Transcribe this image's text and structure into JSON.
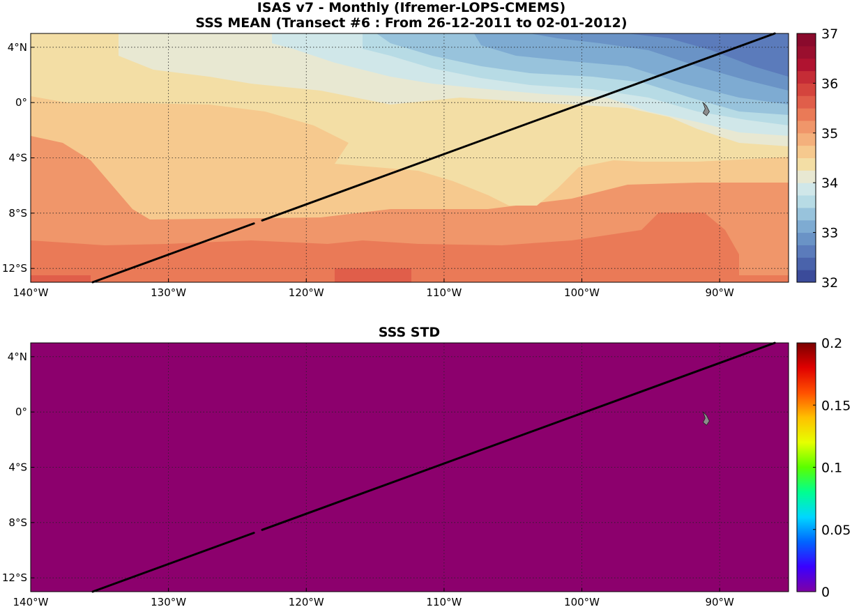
{
  "header": {
    "title": "ISAS v7 - Monthly (Ifremer-LOPS-CMEMS)",
    "subtitle": "SSS MEAN (Transect #6 : From 26-12-2011 to 02-01-2012)"
  },
  "panels": {
    "mean": {
      "title": "",
      "colorbar_ticks": [
        "32",
        "33",
        "34",
        "35",
        "36",
        "37"
      ],
      "colorbar_range": [
        32,
        37
      ]
    },
    "std": {
      "title": "SSS STD",
      "colorbar_ticks": [
        "0",
        "0.05",
        "0.1",
        "0.15",
        "0.2"
      ],
      "colorbar_range": [
        0,
        0.2
      ],
      "field_color": "#8c006d"
    }
  },
  "axes": {
    "lon_range": [
      -140,
      -85
    ],
    "lat_range": [
      -13,
      5
    ],
    "lon_ticks": [
      {
        "value": -140,
        "label": "140°W"
      },
      {
        "value": -130,
        "label": "130°W"
      },
      {
        "value": -120,
        "label": "120°W"
      },
      {
        "value": -110,
        "label": "110°W"
      },
      {
        "value": -100,
        "label": "100°W"
      },
      {
        "value": -90,
        "label": "90°W"
      }
    ],
    "lat_ticks": [
      {
        "value": 4,
        "label": "4°N"
      },
      {
        "value": 0,
        "label": "0°"
      },
      {
        "value": -4,
        "label": "4°S"
      },
      {
        "value": -8,
        "label": "8°S"
      },
      {
        "value": -12,
        "label": "12°S"
      }
    ]
  },
  "transect": {
    "start": {
      "lon": -135.5,
      "lat": -13
    },
    "end": {
      "lon": -86,
      "lat": 5
    },
    "gap_lon": [
      -123.8,
      -123.2
    ]
  },
  "island": {
    "name": "Galapagos",
    "lon": -91,
    "lat": -0.5,
    "color": "#8c8c8c"
  },
  "colors": {
    "mean_colormap": [
      "#3b4b9a",
      "#4a63ab",
      "#5b7bbb",
      "#6a93c6",
      "#7eabd2",
      "#98c3dc",
      "#b7dbe5",
      "#d0e7e9",
      "#e8e8d2",
      "#f3dea5",
      "#f6c98e",
      "#f4b07c",
      "#f0966a",
      "#ea7a57",
      "#e05e4a",
      "#d4443d",
      "#c52c36",
      "#b01330",
      "#9a0f2e",
      "#8a0a2c"
    ],
    "std_colormap": [
      "#7f00a5",
      "#3a00ff",
      "#0064ff",
      "#00d7ff",
      "#00ff90",
      "#5aff00",
      "#e6ff00",
      "#ffc000",
      "#ff5000",
      "#e00000",
      "#7a0000"
    ]
  },
  "chart_data": {
    "type": "heatmap",
    "variable": "SSS",
    "mean_field_zones": [
      {
        "region": "far north-east (0-5N, 105-85W)",
        "sss": 33.4
      },
      {
        "region": "north-central (1-5N, 120-105W)",
        "sss": 34.2
      },
      {
        "region": "north-west (1-5N, 140-125W)",
        "sss": 35.0
      },
      {
        "region": "equatorial band (4S-1N)",
        "sss": 35.2
      },
      {
        "region": "subtropical south (4-8S)",
        "sss": 35.5
      },
      {
        "region": "south (8-13S)",
        "sss": 35.8
      },
      {
        "region": "south maximum (10-13S, 122-112W)",
        "sss": 36.1
      }
    ],
    "std_field": 0.0
  }
}
